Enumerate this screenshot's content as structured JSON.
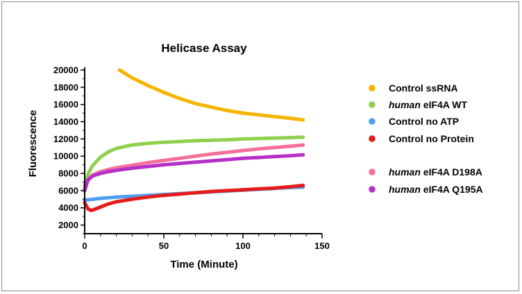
{
  "chart_data": {
    "type": "scatter",
    "title": "Helicase Assay",
    "xlabel": "Time (Minute)",
    "ylabel": "Fluorescence",
    "xlim": [
      0,
      150
    ],
    "ylim": [
      1000,
      20000
    ],
    "x_ticks": [
      0,
      50,
      100,
      150
    ],
    "y_ticks": [
      2000,
      4000,
      6000,
      8000,
      10000,
      12000,
      14000,
      16000,
      18000,
      20000
    ],
    "grid": false,
    "legend_position": "right",
    "series": [
      {
        "name": "Control ssRNA",
        "legend_prefix": "",
        "legend_suffix": "Control ssRNA",
        "color": "#f5b400",
        "x": [
          22,
          30,
          40,
          50,
          60,
          70,
          80,
          90,
          100,
          110,
          120,
          130,
          138
        ],
        "y": [
          20000,
          19100,
          18200,
          17400,
          16700,
          16100,
          15700,
          15300,
          15000,
          14800,
          14600,
          14400,
          14200
        ]
      },
      {
        "name": "human eIF4A WT",
        "legend_prefix": "human",
        "legend_suffix": " eIF4A WT",
        "color": "#8fd14f",
        "x": [
          0,
          2,
          5,
          10,
          15,
          20,
          30,
          40,
          50,
          60,
          70,
          80,
          90,
          100,
          110,
          120,
          130,
          138
        ],
        "y": [
          6600,
          7900,
          8900,
          9900,
          10500,
          10900,
          11300,
          11500,
          11600,
          11700,
          11800,
          11850,
          11900,
          12000,
          12050,
          12100,
          12150,
          12200
        ]
      },
      {
        "name": "Control no ATP",
        "legend_prefix": "",
        "legend_suffix": "Control no ATP",
        "color": "#4f9ff0",
        "x": [
          0,
          10,
          20,
          30,
          40,
          50,
          60,
          70,
          80,
          90,
          100,
          110,
          120,
          130,
          138
        ],
        "y": [
          4900,
          5100,
          5250,
          5350,
          5450,
          5550,
          5650,
          5750,
          5850,
          5950,
          6050,
          6150,
          6250,
          6350,
          6400
        ]
      },
      {
        "name": "Control no Protein",
        "legend_prefix": "",
        "legend_suffix": "Control no Protein",
        "color": "#e51c1c",
        "x": [
          0,
          2,
          4,
          6,
          10,
          15,
          20,
          30,
          40,
          50,
          60,
          70,
          80,
          90,
          100,
          110,
          120,
          130,
          138
        ],
        "y": [
          4600,
          3900,
          3700,
          3800,
          4100,
          4450,
          4700,
          5000,
          5250,
          5450,
          5600,
          5750,
          5900,
          6000,
          6100,
          6200,
          6300,
          6450,
          6600
        ]
      },
      {
        "name": "human eIF4A D198A",
        "legend_prefix": "human",
        "legend_suffix": " eIF4A D198A",
        "color": "#f56f98",
        "x": [
          0,
          2,
          5,
          10,
          15,
          20,
          30,
          40,
          50,
          60,
          70,
          80,
          90,
          100,
          110,
          120,
          130,
          138
        ],
        "y": [
          6300,
          7300,
          7800,
          8200,
          8450,
          8650,
          8950,
          9250,
          9500,
          9750,
          10000,
          10250,
          10450,
          10650,
          10850,
          11000,
          11150,
          11300
        ]
      },
      {
        "name": "human eIF4A Q195A",
        "legend_prefix": "human",
        "legend_suffix": " eIF4A Q195A",
        "color": "#b52fc8",
        "x": [
          0,
          2,
          5,
          10,
          15,
          20,
          30,
          40,
          50,
          60,
          70,
          80,
          90,
          100,
          110,
          120,
          130,
          138
        ],
        "y": [
          6000,
          7200,
          7700,
          8000,
          8200,
          8350,
          8600,
          8800,
          9000,
          9150,
          9300,
          9450,
          9600,
          9750,
          9850,
          9950,
          10050,
          10150
        ]
      }
    ]
  }
}
